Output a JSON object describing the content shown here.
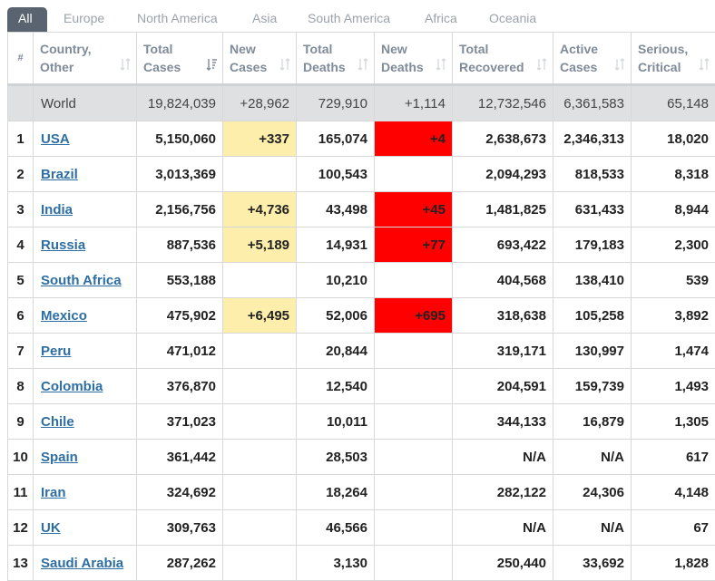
{
  "tabs": [
    "All",
    "Europe",
    "North America",
    "Asia",
    "South America",
    "Africa",
    "Oceania"
  ],
  "headers": {
    "idx": "#",
    "country": [
      "Country,",
      "Other"
    ],
    "total_cases": [
      "Total",
      "Cases"
    ],
    "new_cases": [
      "New",
      "Cases"
    ],
    "total_deaths": [
      "Total",
      "Deaths"
    ],
    "new_deaths": [
      "New",
      "Deaths"
    ],
    "total_recovered": [
      "Total",
      "Recovered"
    ],
    "active_cases": [
      "Active",
      "Cases"
    ],
    "serious": [
      "Serious,",
      "Critical"
    ]
  },
  "world": {
    "country": "World",
    "total_cases": "19,824,039",
    "new_cases": "+28,962",
    "total_deaths": "729,910",
    "new_deaths": "+1,114",
    "total_recovered": "12,732,546",
    "active_cases": "6,361,583",
    "serious": "65,148"
  },
  "rows": [
    {
      "idx": "1",
      "country": "USA",
      "total_cases": "5,150,060",
      "new_cases": "+337",
      "total_deaths": "165,074",
      "new_deaths": "+4",
      "total_recovered": "2,638,673",
      "active_cases": "2,346,313",
      "serious": "18,020"
    },
    {
      "idx": "2",
      "country": "Brazil",
      "total_cases": "3,013,369",
      "new_cases": "",
      "total_deaths": "100,543",
      "new_deaths": "",
      "total_recovered": "2,094,293",
      "active_cases": "818,533",
      "serious": "8,318"
    },
    {
      "idx": "3",
      "country": "India",
      "total_cases": "2,156,756",
      "new_cases": "+4,736",
      "total_deaths": "43,498",
      "new_deaths": "+45",
      "total_recovered": "1,481,825",
      "active_cases": "631,433",
      "serious": "8,944"
    },
    {
      "idx": "4",
      "country": "Russia",
      "total_cases": "887,536",
      "new_cases": "+5,189",
      "total_deaths": "14,931",
      "new_deaths": "+77",
      "total_recovered": "693,422",
      "active_cases": "179,183",
      "serious": "2,300"
    },
    {
      "idx": "5",
      "country": "South Africa",
      "total_cases": "553,188",
      "new_cases": "",
      "total_deaths": "10,210",
      "new_deaths": "",
      "total_recovered": "404,568",
      "active_cases": "138,410",
      "serious": "539"
    },
    {
      "idx": "6",
      "country": "Mexico",
      "total_cases": "475,902",
      "new_cases": "+6,495",
      "total_deaths": "52,006",
      "new_deaths": "+695",
      "total_recovered": "318,638",
      "active_cases": "105,258",
      "serious": "3,892"
    },
    {
      "idx": "7",
      "country": "Peru",
      "total_cases": "471,012",
      "new_cases": "",
      "total_deaths": "20,844",
      "new_deaths": "",
      "total_recovered": "319,171",
      "active_cases": "130,997",
      "serious": "1,474"
    },
    {
      "idx": "8",
      "country": "Colombia",
      "total_cases": "376,870",
      "new_cases": "",
      "total_deaths": "12,540",
      "new_deaths": "",
      "total_recovered": "204,591",
      "active_cases": "159,739",
      "serious": "1,493"
    },
    {
      "idx": "9",
      "country": "Chile",
      "total_cases": "371,023",
      "new_cases": "",
      "total_deaths": "10,011",
      "new_deaths": "",
      "total_recovered": "344,133",
      "active_cases": "16,879",
      "serious": "1,305"
    },
    {
      "idx": "10",
      "country": "Spain",
      "total_cases": "361,442",
      "new_cases": "",
      "total_deaths": "28,503",
      "new_deaths": "",
      "total_recovered": "N/A",
      "active_cases": "N/A",
      "serious": "617"
    },
    {
      "idx": "11",
      "country": "Iran",
      "total_cases": "324,692",
      "new_cases": "",
      "total_deaths": "18,264",
      "new_deaths": "",
      "total_recovered": "282,122",
      "active_cases": "24,306",
      "serious": "4,148"
    },
    {
      "idx": "12",
      "country": "UK",
      "total_cases": "309,763",
      "new_cases": "",
      "total_deaths": "46,566",
      "new_deaths": "",
      "total_recovered": "N/A",
      "active_cases": "N/A",
      "serious": "67"
    },
    {
      "idx": "13",
      "country": "Saudi Arabia",
      "total_cases": "287,262",
      "new_cases": "",
      "total_deaths": "3,130",
      "new_deaths": "",
      "total_recovered": "250,440",
      "active_cases": "33,692",
      "serious": "1,828"
    }
  ],
  "colors": {
    "new_cases_highlight": "#fdeeab",
    "new_deaths_highlight": "#ff0000",
    "active_tab": "#5a6470",
    "link": "#2d6ea3"
  }
}
